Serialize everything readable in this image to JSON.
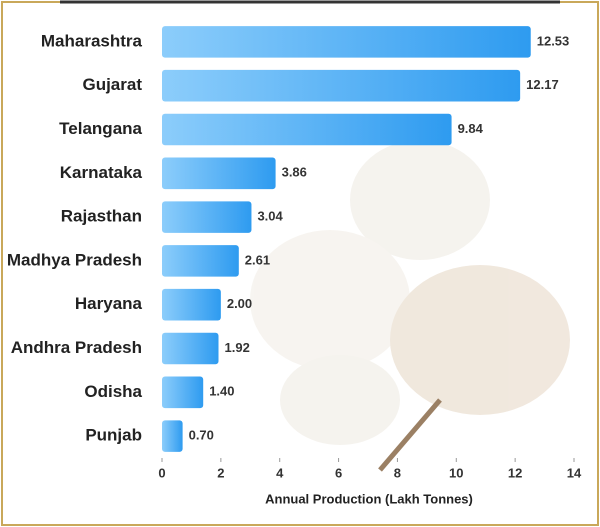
{
  "chart_data": {
    "type": "bar",
    "orientation": "horizontal",
    "xlabel": "Annual Production (Lakh Tonnes)",
    "categories": [
      "Maharashtra",
      "Gujarat",
      "Telangana",
      "Karnataka",
      "Rajasthan",
      "Madhya Pradesh",
      "Haryana",
      "Andhra Pradesh",
      "Odisha",
      "Punjab"
    ],
    "values": [
      12.53,
      12.17,
      9.84,
      3.86,
      3.04,
      2.61,
      2.0,
      1.92,
      1.4,
      0.7
    ],
    "value_labels": [
      "12.53",
      "12.17",
      "9.84",
      "3.86",
      "3.04",
      "2.61",
      "2.00",
      "1.92",
      "1.40",
      "0.70"
    ],
    "color": "#2e9bf0",
    "xlim": [
      0,
      14
    ],
    "xticks": [
      0,
      2,
      4,
      6,
      8,
      10,
      12,
      14
    ],
    "grid": false
  }
}
